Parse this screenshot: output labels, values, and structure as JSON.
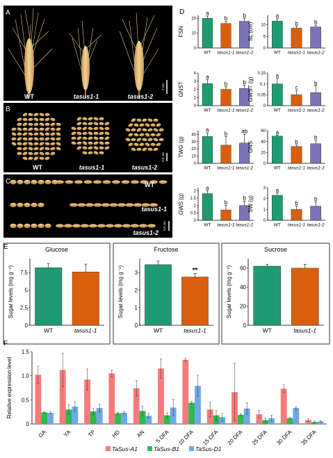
{
  "panel_labels": {
    "A": "A",
    "B": "B",
    "C": "C",
    "D": "D",
    "E": "E",
    "F": "F"
  },
  "photos": {
    "A": {
      "labels": [
        "WT",
        "tasus1-1",
        "tasus1-2"
      ],
      "scale": "2 cm"
    },
    "B": {
      "labels": [
        "WT",
        "tasus1-1",
        "tasus1-2"
      ],
      "scale": "0.5 cm"
    },
    "C": {
      "labels": [
        "WT",
        "tasus1-1",
        "tasus1-2"
      ],
      "scale": "0.5 cm"
    }
  },
  "colors": {
    "wt": "#1f9a73",
    "tasus1_1": "#d95f0e",
    "tasus1_2": "#7b72b8",
    "a1": "#f47b7b",
    "b1": "#2dbb4e",
    "d1": "#6ea8e8"
  },
  "chart_data": [
    {
      "panel": "D",
      "type": "bar",
      "ylabel": "FSN",
      "categories": [
        "WT",
        "tasus1-1",
        "tasus1-2"
      ],
      "values": [
        20,
        16.5,
        18
      ],
      "errors": [
        1.5,
        1.5,
        2.0
      ],
      "letters": [
        "a",
        "b",
        "b"
      ],
      "ylim": [
        0,
        22
      ],
      "ticks": [
        0,
        10,
        20
      ]
    },
    {
      "panel": "D",
      "type": "bar",
      "ylabel": "SL (cm)",
      "categories": [
        "WT",
        "tasus1-1",
        "tasus1-2"
      ],
      "values": [
        11.5,
        8.5,
        9
      ],
      "errors": [
        1.0,
        0.8,
        0.8
      ],
      "letters": [
        "a",
        "b",
        "b"
      ],
      "ylim": [
        0,
        14
      ],
      "ticks": [
        0,
        5,
        10
      ]
    },
    {
      "panel": "D",
      "type": "bar",
      "ylabel": "GNST",
      "categories": [
        "WT",
        "tasus1-1",
        "tasus1-2"
      ],
      "values": [
        2.7,
        2.0,
        2.1
      ],
      "errors": [
        0.5,
        0.3,
        0.4
      ],
      "letters": [
        "a",
        "b",
        "b"
      ],
      "ylim": [
        0,
        4
      ],
      "ticks": [
        0,
        1,
        2,
        3,
        4
      ]
    },
    {
      "panel": "D",
      "type": "bar",
      "ylabel": "GWST (g)",
      "categories": [
        "WT",
        "tasus1-1",
        "tasus1-2"
      ],
      "values": [
        0.1,
        0.05,
        0.06
      ],
      "errors": [
        0.025,
        0.02,
        0.03
      ],
      "letters": [
        "a",
        "c",
        "b"
      ],
      "ylim": [
        0,
        0.15
      ],
      "ticks": [
        0,
        0.05,
        0.1,
        0.15
      ]
    },
    {
      "panel": "D",
      "type": "bar",
      "ylabel": "TWG (g)",
      "categories": [
        "WT",
        "tasus1-1",
        "tasus1-2"
      ],
      "values": [
        37,
        25,
        28
      ],
      "errors": [
        5,
        12,
        12
      ],
      "letters": [
        "a",
        "b",
        "ab"
      ],
      "ylim": [
        0,
        45
      ],
      "ticks": [
        0,
        10,
        20,
        30,
        40
      ]
    },
    {
      "panel": "D",
      "type": "bar",
      "ylabel": "GNS",
      "categories": [
        "WT",
        "tasus1-1",
        "tasus1-2"
      ],
      "values": [
        50,
        31,
        36
      ],
      "errors": [
        2,
        3,
        6
      ],
      "letters": [
        "a",
        "b",
        "b"
      ],
      "ylim": [
        0,
        60
      ],
      "ticks": [
        0,
        20,
        40,
        60
      ]
    },
    {
      "panel": "D",
      "type": "bar",
      "ylabel": "GWS (g)",
      "categories": [
        "WT",
        "tasus1-1",
        "tasus1-2"
      ],
      "values": [
        1.8,
        0.7,
        1.0
      ],
      "errors": [
        0.2,
        0.3,
        0.3
      ],
      "letters": [
        "a",
        "b",
        "b"
      ],
      "ylim": [
        0,
        2.2
      ],
      "ticks": [
        0,
        0.5,
        1,
        1.5,
        2
      ]
    },
    {
      "panel": "D",
      "type": "bar",
      "ylabel": "SW (g)",
      "categories": [
        "WT",
        "tasus1-1",
        "tasus1-2"
      ],
      "values": [
        2.3,
        1.0,
        1.3
      ],
      "errors": [
        0.2,
        0.3,
        0.4
      ],
      "letters": [
        "a",
        "b",
        "b"
      ],
      "ylim": [
        0,
        3
      ],
      "ticks": [
        0,
        1,
        2,
        3
      ]
    },
    {
      "panel": "E",
      "type": "bar",
      "title": "Glucose",
      "ylabel": "Sugar levels (mg g⁻¹)",
      "categories": [
        "WT",
        "tasus1-1"
      ],
      "values": [
        8.2,
        7.6
      ],
      "errors": [
        0.6,
        1.1
      ],
      "letters": [
        "",
        ""
      ],
      "ylim": [
        0,
        9.5
      ],
      "ticks": [
        0,
        2.5,
        5,
        7.5
      ]
    },
    {
      "panel": "E",
      "type": "bar",
      "title": "Fructose",
      "ylabel": "Sugar levels (mg g⁻¹)",
      "categories": [
        "WT",
        "tasus1-1"
      ],
      "values": [
        3.45,
        2.75
      ],
      "errors": [
        0.2,
        0.2
      ],
      "letters": [
        "",
        "**"
      ],
      "ylim": [
        0,
        3.8
      ],
      "ticks": [
        0,
        1,
        2,
        3
      ]
    },
    {
      "panel": "E",
      "type": "bar",
      "title": "Sucrose",
      "ylabel": "Sugar levels (mg g⁻¹)",
      "categories": [
        "WT",
        "tasus1-1"
      ],
      "values": [
        62,
        60
      ],
      "errors": [
        2,
        4
      ],
      "letters": [
        "",
        ""
      ],
      "ylim": [
        0,
        70
      ],
      "ticks": [
        0,
        20,
        40,
        60
      ]
    },
    {
      "panel": "F",
      "type": "bar",
      "ylabel": "Relative expression level",
      "ylim": [
        0,
        1.5
      ],
      "ticks": [
        0,
        0.5,
        1.0,
        1.5
      ],
      "categories": [
        "GA",
        "YA",
        "TP",
        "HD",
        "AN",
        "5 DFA",
        "10 DFA",
        "15 DFA",
        "20 DFA",
        "25 DFA",
        "30 DFA",
        "35 DFA"
      ],
      "series": [
        {
          "name": "TaSus-A1",
          "values": [
            1.02,
            1.12,
            0.92,
            1.05,
            0.74,
            1.15,
            1.33,
            0.3,
            0.66,
            0.2,
            0.73,
            0.08
          ],
          "errors": [
            0.18,
            0.35,
            0.22,
            0.07,
            0.16,
            0.2,
            0.03,
            0.15,
            0.6,
            0.08,
            0.08,
            0.03
          ]
        },
        {
          "name": "TaSus-B1",
          "values": [
            0.24,
            0.3,
            0.26,
            0.22,
            0.27,
            0.18,
            0.44,
            0.18,
            0.19,
            0.08,
            0.12,
            0.04
          ],
          "errors": [
            0.02,
            0.1,
            0.06,
            0.02,
            0.1,
            0.05,
            0.03,
            0.1,
            0.02,
            0.04,
            0.02,
            0.02
          ]
        },
        {
          "name": "TaSus-D1",
          "values": [
            0.23,
            0.36,
            0.33,
            0.23,
            0.17,
            0.34,
            0.79,
            0.14,
            0.32,
            0.12,
            0.33,
            0.05
          ],
          "errors": [
            0.02,
            0.1,
            0.08,
            0.02,
            0.05,
            0.17,
            0.22,
            0.08,
            0.12,
            0.06,
            0.03,
            0.02
          ]
        }
      ]
    }
  ]
}
